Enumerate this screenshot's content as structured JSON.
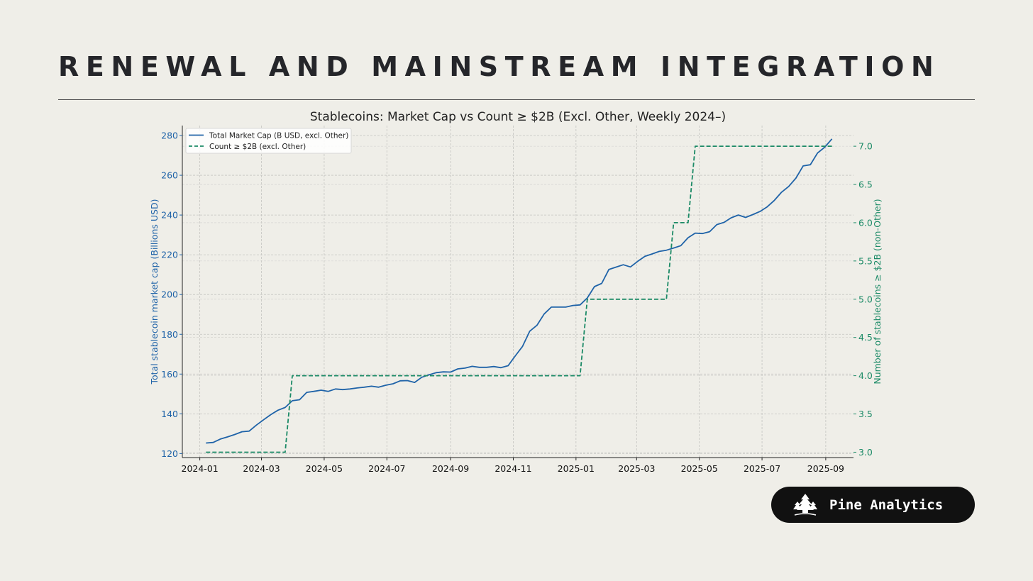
{
  "page": {
    "title": "RENEWAL AND MAINSTREAM INTEGRATION"
  },
  "brand": {
    "name": "Pine Analytics",
    "logo_icon": "pine-tree-icon"
  },
  "colors": {
    "background": "#efeee8",
    "market_cap_line": "#1f63a8",
    "count_line": "#1b8a66",
    "badge_background": "#111111"
  },
  "chart_data": {
    "type": "line",
    "title": "Stablecoins: Market Cap vs Count ≥ $2B (Excl. Other, Weekly 2024–)",
    "grid": true,
    "legend_placement": "top-left",
    "x_axis": {
      "type": "date",
      "range": [
        "2023-12-15",
        "2025-09-28"
      ],
      "ticks": [
        "2024-01",
        "2024-03",
        "2024-05",
        "2024-07",
        "2024-09",
        "2024-11",
        "2025-01",
        "2025-03",
        "2025-05",
        "2025-07",
        "2025-09"
      ]
    },
    "y_left": {
      "label": "Total stablecoin market cap (Billions USD)",
      "range": [
        118,
        285
      ],
      "ticks": [
        120,
        140,
        160,
        180,
        200,
        220,
        240,
        260,
        280
      ]
    },
    "y_right": {
      "label": "Number of stablecoins ≥ $2B (non-Other)",
      "range": [
        2.93,
        7.27
      ],
      "ticks": [
        "3.0",
        "3.5",
        "4.0",
        "4.5",
        "5.0",
        "5.5",
        "6.0",
        "6.5",
        "7.0"
      ]
    },
    "series": [
      {
        "name": "Total Market Cap (B USD, excl. Other)",
        "axis": "left",
        "style": "solid",
        "points": [
          [
            "2024-01-07",
            125.3
          ],
          [
            "2024-01-14",
            125.6
          ],
          [
            "2024-01-21",
            127.3
          ],
          [
            "2024-01-28",
            128.4
          ],
          [
            "2024-02-04",
            129.6
          ],
          [
            "2024-02-11",
            131.0
          ],
          [
            "2024-02-18",
            131.3
          ],
          [
            "2024-02-25",
            134.3
          ],
          [
            "2024-03-03",
            137.0
          ],
          [
            "2024-03-10",
            139.6
          ],
          [
            "2024-03-17",
            141.8
          ],
          [
            "2024-03-24",
            143.2
          ],
          [
            "2024-03-31",
            146.6
          ],
          [
            "2024-04-07",
            147.1
          ],
          [
            "2024-04-14",
            150.8
          ],
          [
            "2024-04-21",
            151.3
          ],
          [
            "2024-04-28",
            151.9
          ],
          [
            "2024-05-05",
            151.3
          ],
          [
            "2024-05-12",
            152.5
          ],
          [
            "2024-05-19",
            152.2
          ],
          [
            "2024-05-26",
            152.5
          ],
          [
            "2024-06-02",
            153.0
          ],
          [
            "2024-06-09",
            153.4
          ],
          [
            "2024-06-16",
            153.9
          ],
          [
            "2024-06-23",
            153.4
          ],
          [
            "2024-06-30",
            154.4
          ],
          [
            "2024-07-07",
            155.1
          ],
          [
            "2024-07-14",
            156.6
          ],
          [
            "2024-07-21",
            156.7
          ],
          [
            "2024-07-28",
            155.8
          ],
          [
            "2024-08-04",
            158.4
          ],
          [
            "2024-08-11",
            159.6
          ],
          [
            "2024-08-18",
            160.7
          ],
          [
            "2024-08-25",
            161.1
          ],
          [
            "2024-09-01",
            161.0
          ],
          [
            "2024-09-08",
            162.6
          ],
          [
            "2024-09-15",
            163.0
          ],
          [
            "2024-09-22",
            163.9
          ],
          [
            "2024-09-29",
            163.4
          ],
          [
            "2024-10-06",
            163.4
          ],
          [
            "2024-10-13",
            163.8
          ],
          [
            "2024-10-20",
            163.2
          ],
          [
            "2024-10-27",
            164.2
          ],
          [
            "2024-11-03",
            169.2
          ],
          [
            "2024-11-10",
            173.9
          ],
          [
            "2024-11-17",
            181.6
          ],
          [
            "2024-11-24",
            184.5
          ],
          [
            "2024-12-01",
            190.2
          ],
          [
            "2024-12-08",
            193.7
          ],
          [
            "2024-12-15",
            193.7
          ],
          [
            "2024-12-22",
            193.7
          ],
          [
            "2024-12-29",
            194.5
          ],
          [
            "2025-01-05",
            194.8
          ],
          [
            "2025-01-12",
            198.3
          ],
          [
            "2025-01-19",
            204.0
          ],
          [
            "2025-01-26",
            205.6
          ],
          [
            "2025-02-02",
            212.6
          ],
          [
            "2025-02-09",
            213.8
          ],
          [
            "2025-02-16",
            215.0
          ],
          [
            "2025-02-23",
            213.9
          ],
          [
            "2025-03-02",
            216.7
          ],
          [
            "2025-03-09",
            219.2
          ],
          [
            "2025-03-16",
            220.4
          ],
          [
            "2025-03-23",
            221.7
          ],
          [
            "2025-03-30",
            222.3
          ],
          [
            "2025-04-06",
            223.4
          ],
          [
            "2025-04-13",
            224.6
          ],
          [
            "2025-04-20",
            228.6
          ],
          [
            "2025-04-27",
            230.9
          ],
          [
            "2025-05-04",
            230.7
          ],
          [
            "2025-05-11",
            231.6
          ],
          [
            "2025-05-18",
            235.2
          ],
          [
            "2025-05-25",
            236.3
          ],
          [
            "2025-06-01",
            238.6
          ],
          [
            "2025-06-08",
            240.0
          ],
          [
            "2025-06-15",
            238.8
          ],
          [
            "2025-06-22",
            240.2
          ],
          [
            "2025-06-29",
            241.8
          ],
          [
            "2025-07-06",
            244.1
          ],
          [
            "2025-07-13",
            247.4
          ],
          [
            "2025-07-20",
            251.5
          ],
          [
            "2025-07-27",
            254.4
          ],
          [
            "2025-08-03",
            258.6
          ],
          [
            "2025-08-10",
            264.7
          ],
          [
            "2025-08-17",
            265.3
          ],
          [
            "2025-08-24",
            271.2
          ],
          [
            "2025-08-31",
            274.1
          ],
          [
            "2025-09-07",
            278.3
          ]
        ]
      },
      {
        "name": "Count ≥ $2B (excl. Other)",
        "axis": "right",
        "style": "dashed",
        "points": [
          [
            "2024-01-07",
            3.0
          ],
          [
            "2024-03-24",
            3.0
          ],
          [
            "2024-03-31",
            4.0
          ],
          [
            "2025-01-05",
            4.0
          ],
          [
            "2025-01-12",
            5.0
          ],
          [
            "2025-03-30",
            5.0
          ],
          [
            "2025-04-06",
            6.0
          ],
          [
            "2025-04-20",
            6.0
          ],
          [
            "2025-04-27",
            7.0
          ],
          [
            "2025-09-07",
            7.0
          ]
        ]
      }
    ]
  }
}
